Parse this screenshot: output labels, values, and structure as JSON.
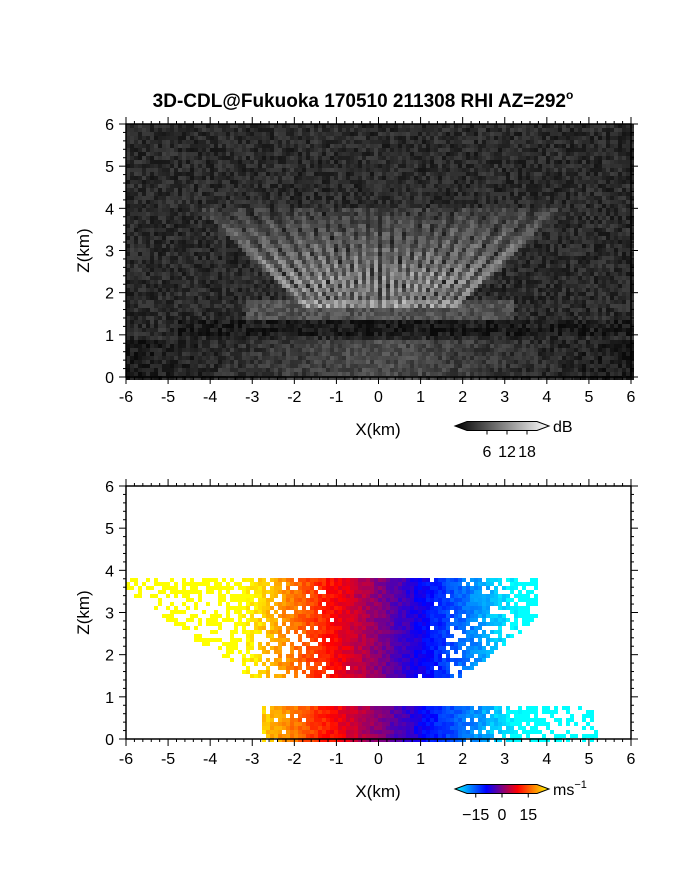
{
  "title": "3D-CDL@Fukuoka 170510 211308 RHI AZ=292",
  "title_superscript": "o",
  "chart_data": [
    {
      "type": "heatmap",
      "name": "backscatter-intensity",
      "xlabel": "X(km)",
      "ylabel": "Z(km)",
      "xlim": [
        -6,
        6
      ],
      "ylim": [
        0,
        6
      ],
      "x_ticks": [
        "-6",
        "-5",
        "-4",
        "-3",
        "-2",
        "-1",
        "0",
        "1",
        "2",
        "3",
        "4",
        "5",
        "6"
      ],
      "y_ticks": [
        "0",
        "1",
        "2",
        "3",
        "4",
        "5",
        "6"
      ],
      "colormap": "grayscale",
      "colorbar": {
        "unit": "dB",
        "ticks": [
          "6",
          "12",
          "18"
        ],
        "values": [
          6,
          12,
          18
        ],
        "range": [
          0,
          21
        ]
      },
      "features": {
        "ray_fan_top_km": 4,
        "aerosol_layer_km": [
          1.2,
          1.8
        ],
        "boundary_layer_top_km": 0.9
      }
    },
    {
      "type": "heatmap",
      "name": "doppler-velocity",
      "xlabel": "X(km)",
      "ylabel": "Z(km)",
      "xlim": [
        -6,
        6
      ],
      "ylim": [
        0,
        6
      ],
      "x_ticks": [
        "-6",
        "-5",
        "-4",
        "-3",
        "-2",
        "-1",
        "0",
        "1",
        "2",
        "3",
        "4",
        "5",
        "6"
      ],
      "y_ticks": [
        "0",
        "1",
        "2",
        "3",
        "4",
        "5",
        "6"
      ],
      "colormap": "cyan-blue-red-yellow",
      "colorbar": {
        "unit": "ms",
        "unit_exponent": "−1",
        "ticks": [
          "−15",
          "0",
          "15"
        ],
        "values": [
          -15,
          0,
          15
        ],
        "range": [
          -20,
          20
        ]
      },
      "regions": [
        {
          "layer": "upper",
          "z_km": [
            1.5,
            4.0
          ],
          "x_km": [
            -5.5,
            3.7
          ]
        },
        {
          "layer": "lower",
          "z_km": [
            0.0,
            0.9
          ],
          "x_km": [
            -2.8,
            5.2
          ]
        }
      ]
    }
  ],
  "colors": {
    "neg_far": "#00ffff",
    "neg_near": "#0000ff",
    "pos_near": "#ff0000",
    "pos_far": "#ffff00",
    "frame": "#000000"
  }
}
